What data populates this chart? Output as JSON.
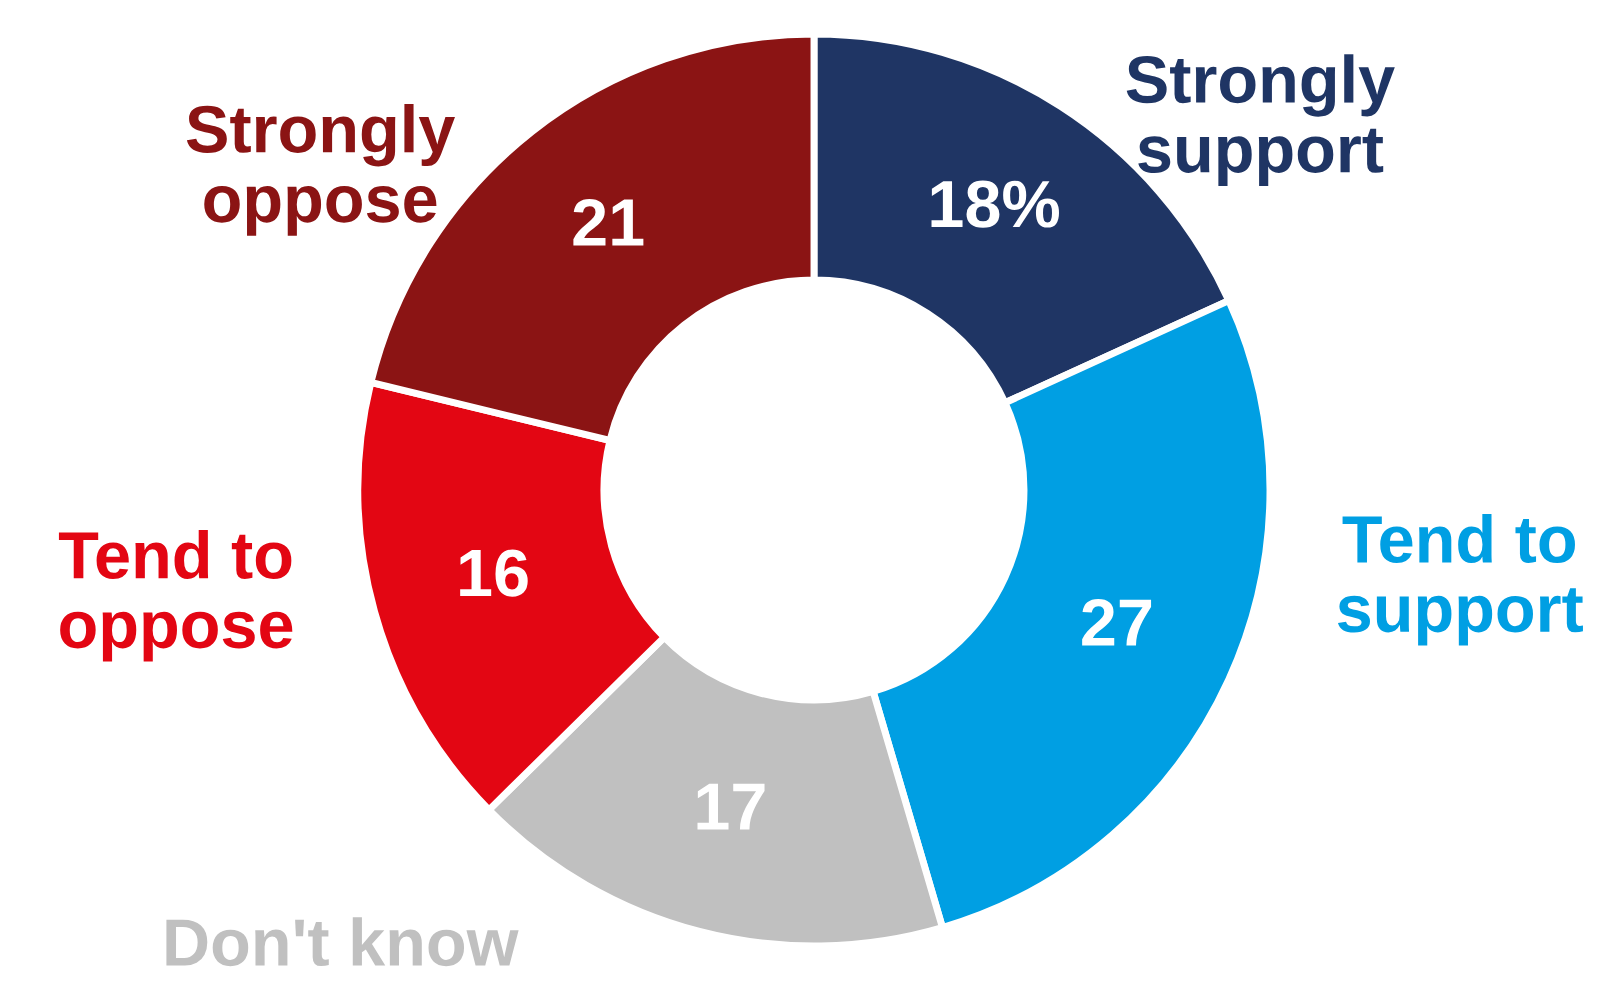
{
  "chart_data": {
    "type": "donut",
    "categories": [
      "Strongly\nsupport",
      "Tend to\nsupport",
      "Don't know",
      "Tend to\noppose",
      "Strongly\noppose"
    ],
    "values": [
      18,
      27,
      17,
      16,
      21
    ],
    "value_labels": [
      "18%",
      "27",
      "17",
      "16",
      "21"
    ],
    "colors": [
      "#1f3564",
      "#009fe3",
      "#c0c0c0",
      "#e30613",
      "#8b1414"
    ]
  }
}
